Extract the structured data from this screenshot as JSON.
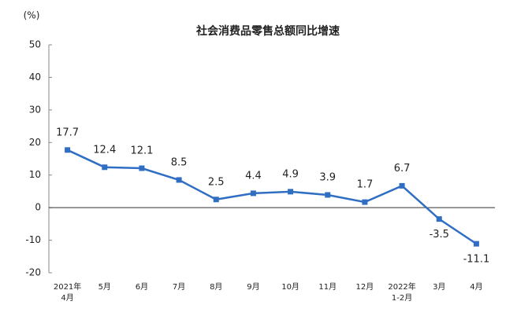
{
  "chart_data": {
    "type": "line",
    "title": "社会消费品零售总额同比增速",
    "y_label": "(%)",
    "categories": [
      "2021年\n4月",
      "5月",
      "6月",
      "7月",
      "8月",
      "9月",
      "10月",
      "11月",
      "12月",
      "2022年\n1-2月",
      "3月",
      "4月"
    ],
    "series": [
      {
        "name": "社会消费品零售总额同比增速",
        "color": "#2f6ec2",
        "values": [
          17.7,
          12.4,
          12.1,
          8.5,
          2.5,
          4.4,
          4.9,
          3.9,
          1.7,
          6.7,
          -3.5,
          -11.1
        ]
      }
    ],
    "ylim": [
      -20,
      50
    ],
    "yticks": [
      -20,
      -10,
      0,
      10,
      20,
      30,
      40,
      50
    ],
    "grid": false
  }
}
